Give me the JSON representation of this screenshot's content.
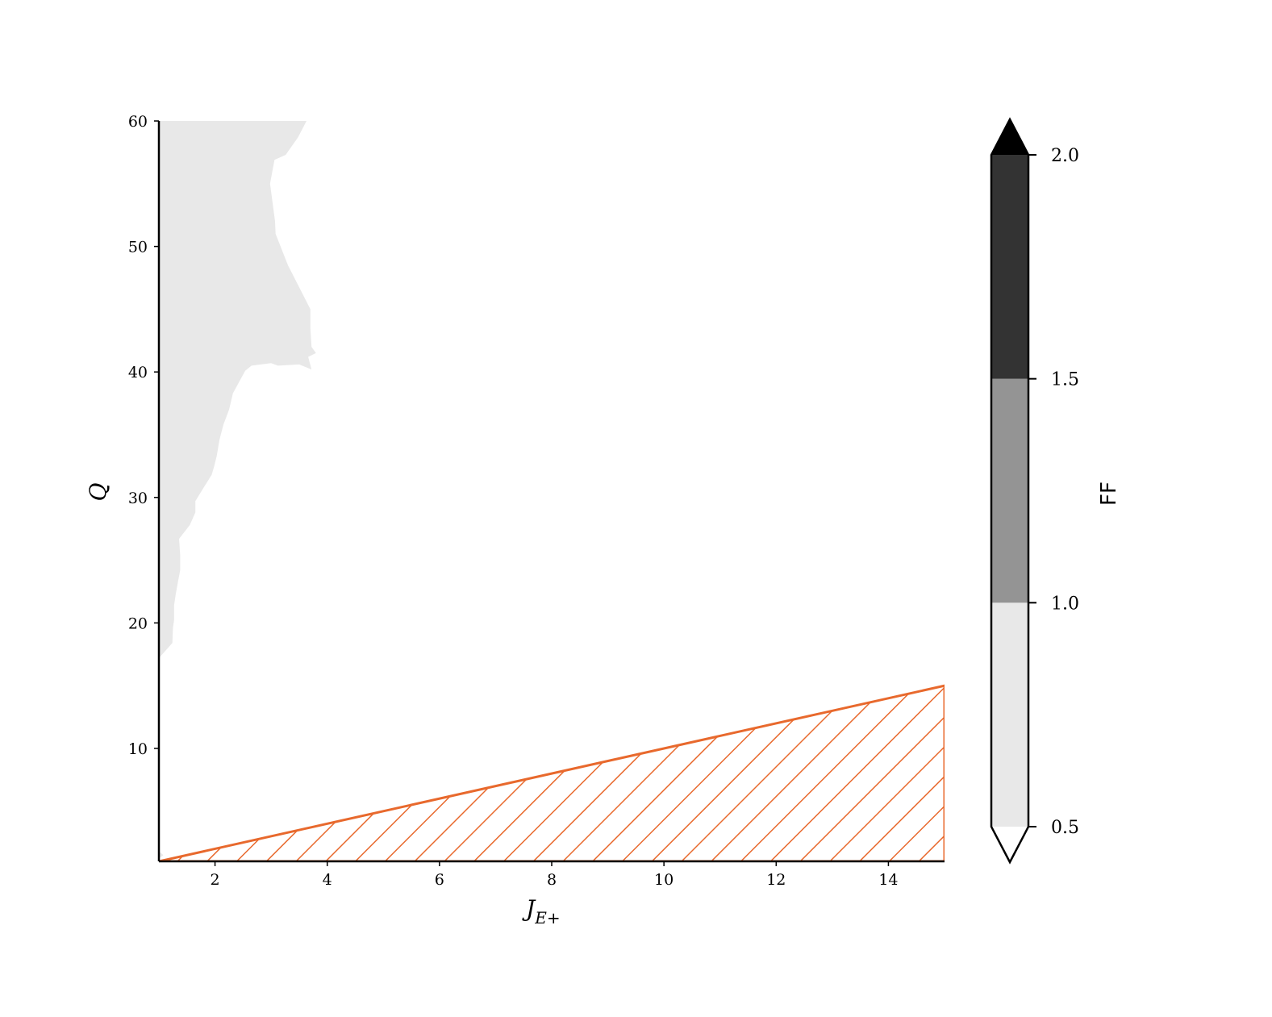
{
  "chart_data": {
    "type": "heatmap",
    "title": "",
    "xlabel": "J",
    "xlabel_subscript": "E+",
    "ylabel": "Q",
    "xlim": [
      1,
      15
    ],
    "ylim": [
      1,
      60
    ],
    "xticks": [
      2,
      4,
      6,
      8,
      10,
      12,
      14
    ],
    "yticks": [
      10,
      20,
      30,
      40,
      50,
      60
    ],
    "colorbar": {
      "label": "FF",
      "levels": [
        0.5,
        1.0,
        1.5,
        2.0
      ],
      "tick_labels": [
        "0.5",
        "1.0",
        "1.5",
        "2.0"
      ],
      "extend": "both",
      "colors": [
        "#e8e8e8",
        "#949494",
        "#333333"
      ],
      "under_color": "#ffffff",
      "over_color": "#000000"
    },
    "regions": [
      {
        "level": "0.5-1.0",
        "color": "#e8e8e8",
        "polygons": [
          [
            [
              1,
              60
            ],
            [
              3.63,
              60
            ],
            [
              3.48,
              58.7
            ],
            [
              3.26,
              57.3
            ],
            [
              3.06,
              56.9
            ],
            [
              2.98,
              55
            ],
            [
              3.07,
              52
            ],
            [
              3.08,
              51
            ],
            [
              3.3,
              48.5
            ],
            [
              3.7,
              45
            ],
            [
              3.7,
              43.5
            ],
            [
              3.72,
              42
            ],
            [
              3.8,
              41.5
            ],
            [
              3.66,
              41.2
            ],
            [
              3.72,
              40.2
            ],
            [
              3.5,
              40.6
            ],
            [
              3.12,
              40.5
            ],
            [
              3.0,
              40.7
            ],
            [
              2.65,
              40.5
            ],
            [
              2.54,
              40.1
            ],
            [
              2.44,
              39.3
            ],
            [
              2.32,
              38.3
            ],
            [
              2.25,
              37
            ],
            [
              2.15,
              35.8
            ],
            [
              2.08,
              34.6
            ],
            [
              2.03,
              33.3
            ],
            [
              1.98,
              32.4
            ],
            [
              1.94,
              31.8
            ],
            [
              1.8,
              30.8
            ],
            [
              1.65,
              29.7
            ],
            [
              1.65,
              28.8
            ],
            [
              1.55,
              27.8
            ],
            [
              1.36,
              26.7
            ],
            [
              1.38,
              25.4
            ],
            [
              1.38,
              24.2
            ],
            [
              1.34,
              23.3
            ],
            [
              1.3,
              22.3
            ],
            [
              1.27,
              21.4
            ],
            [
              1.27,
              20.2
            ],
            [
              1.25,
              19.6
            ],
            [
              1.24,
              18.4
            ],
            [
              0.98,
              17.1
            ],
            [
              0.98,
              16
            ],
            [
              0.98,
              14.8
            ],
            [
              0.9,
              13.4
            ],
            [
              0.92,
              12
            ],
            [
              0.92,
              10.8
            ],
            [
              0.9,
              9.8
            ],
            [
              0.85,
              8.8
            ],
            [
              0.7,
              8.2
            ],
            [
              0.57,
              6.9
            ],
            [
              0.55,
              5.4
            ],
            [
              0.55,
              4.5
            ],
            [
              0.54,
              3.6
            ],
            [
              0.7,
              2.9
            ],
            [
              1.08,
              1.5
            ],
            [
              0.93,
              1.0
            ],
            [
              1,
              1
            ]
          ]
        ]
      },
      {
        "level": "1.0-1.5",
        "color": "#949494",
        "polygons": []
      },
      {
        "level": "1.5-2.0",
        "color": "#333333",
        "polygons": []
      }
    ],
    "hatched_region": {
      "color": "#e8692d",
      "pattern": "diagonal",
      "vertices": [
        [
          1,
          1
        ],
        [
          15,
          15
        ],
        [
          15,
          1
        ]
      ]
    }
  }
}
